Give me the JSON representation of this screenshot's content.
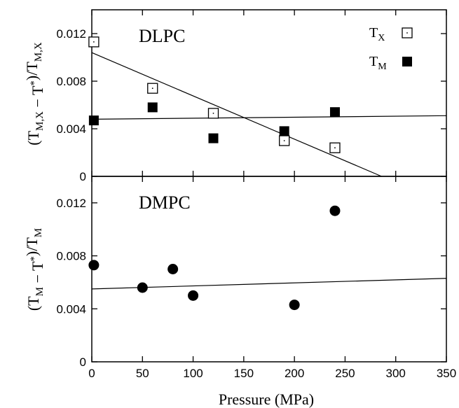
{
  "chart_data": [
    {
      "type": "scatter",
      "panel": "top",
      "title": "DLPC",
      "ylabel": "(T_M,X − T*)/T_M,X",
      "xlim": [
        0,
        350
      ],
      "ylim": [
        0,
        0.014
      ],
      "yticks": [
        "0",
        "0.004",
        "0.008",
        "0.012"
      ],
      "legend_position": "top-right",
      "series": [
        {
          "name": "T_X",
          "marker": "open-square",
          "x": [
            2,
            60,
            120,
            190,
            240
          ],
          "y": [
            0.0113,
            0.0074,
            0.0053,
            0.003,
            0.0024
          ]
        },
        {
          "name": "T_M",
          "marker": "filled-square",
          "x": [
            2,
            60,
            120,
            190,
            240
          ],
          "y": [
            0.0047,
            0.0058,
            0.0032,
            0.0038,
            0.0054
          ]
        }
      ],
      "fit_lines": [
        {
          "x": [
            0,
            286
          ],
          "y": [
            0.0104,
            0.0
          ]
        },
        {
          "x": [
            0,
            350
          ],
          "y": [
            0.0048,
            0.0051
          ]
        }
      ]
    },
    {
      "type": "scatter",
      "panel": "bottom",
      "title": "DMPC",
      "ylabel": "(T_M − T*)/T_M",
      "xlabel": "Pressure (MPa)",
      "xlim": [
        0,
        350
      ],
      "ylim": [
        0,
        0.014
      ],
      "xticks": [
        "0",
        "50",
        "100",
        "150",
        "200",
        "250",
        "300",
        "350"
      ],
      "yticks": [
        "0",
        "0.004",
        "0.008",
        "0.012"
      ],
      "series": [
        {
          "marker": "filled-circle",
          "x": [
            2,
            50,
            80,
            100,
            200,
            240
          ],
          "y": [
            0.0073,
            0.0056,
            0.007,
            0.005,
            0.0043,
            0.0114
          ]
        }
      ],
      "fit_lines": [
        {
          "x": [
            0,
            350
          ],
          "y": [
            0.0055,
            0.0063
          ]
        }
      ]
    }
  ]
}
